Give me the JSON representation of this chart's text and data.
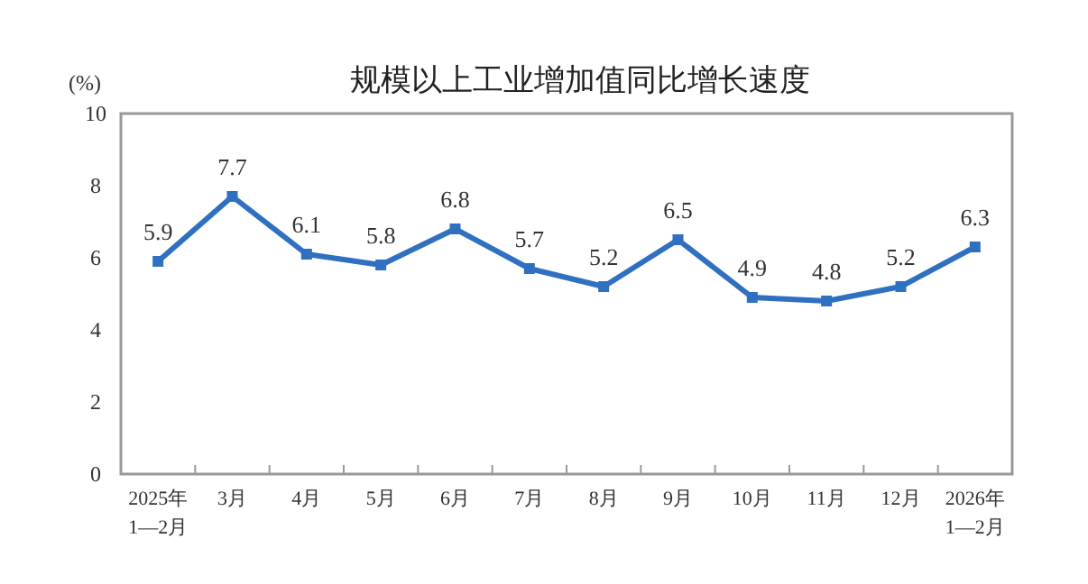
{
  "chart_data": {
    "type": "line",
    "title": "规模以上工业增加值同比增长速度",
    "ylabel": "(%)",
    "categories": [
      "2025年\n1—2月",
      "3月",
      "4月",
      "5月",
      "6月",
      "7月",
      "8月",
      "9月",
      "10月",
      "11月",
      "12月",
      "2026年\n1—2月"
    ],
    "series": [
      {
        "color": "#3070c0",
        "values": [
          5.9,
          7.7,
          6.1,
          5.8,
          6.8,
          5.7,
          5.2,
          6.5,
          4.9,
          4.8,
          5.2,
          6.3
        ]
      }
    ],
    "ylim": [
      0,
      10
    ],
    "yticks": [
      0,
      2,
      4,
      6,
      8,
      10
    ],
    "marker": "square",
    "line_style": "solid",
    "data_labels": true
  }
}
